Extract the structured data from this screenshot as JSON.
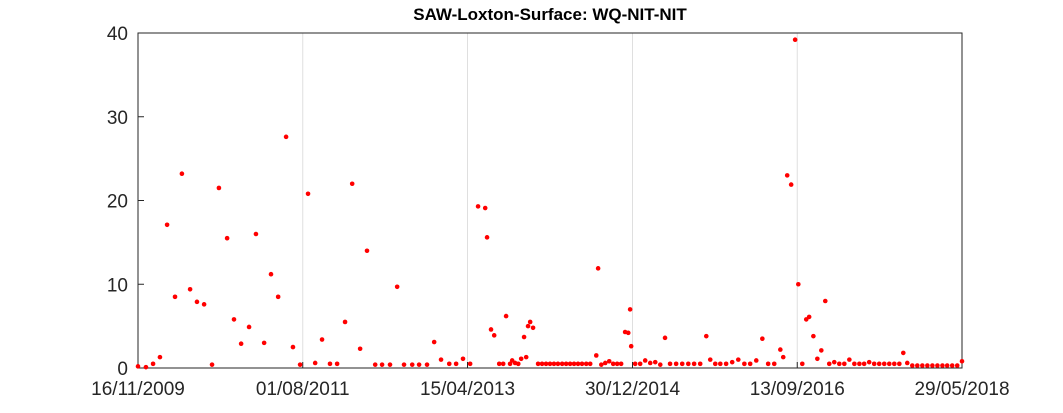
{
  "chart_data": {
    "type": "scatter",
    "title": "SAW-Loxton-Surface: WQ-NIT-NIT",
    "color": "#ff0000",
    "grid": "x",
    "xlim": [
      "2009-11-16",
      "2018-05-29"
    ],
    "xticks": [
      {
        "value": "2009-11-16",
        "label": "16/11/2009"
      },
      {
        "value": "2011-08-01",
        "label": "01/08/2011"
      },
      {
        "value": "2013-04-15",
        "label": "15/04/2013"
      },
      {
        "value": "2014-12-30",
        "label": "30/12/2014"
      },
      {
        "value": "2016-09-13",
        "label": "13/09/2016"
      },
      {
        "value": "2018-05-29",
        "label": "29/05/2018"
      }
    ],
    "ylim": [
      0,
      40
    ],
    "yticks": [
      0,
      10,
      20,
      30,
      40
    ],
    "x": [
      "2009-11-16",
      "2009-12-16",
      "2010-01-12",
      "2010-02-07",
      "2010-03-06",
      "2010-04-05",
      "2010-05-01",
      "2010-06-01",
      "2010-06-27",
      "2010-07-24",
      "2010-08-23",
      "2010-09-18",
      "2010-10-19",
      "2010-11-14",
      "2010-12-11",
      "2011-01-10",
      "2011-02-05",
      "2011-03-08",
      "2011-04-03",
      "2011-04-30",
      "2011-05-30",
      "2011-06-25",
      "2011-07-22",
      "2011-08-21",
      "2011-09-17",
      "2011-10-13",
      "2011-11-12",
      "2011-12-09",
      "2012-01-08",
      "2012-02-04",
      "2012-03-05",
      "2012-03-31",
      "2012-05-01",
      "2012-05-27",
      "2012-06-26",
      "2012-07-23",
      "2012-08-18",
      "2012-09-18",
      "2012-10-14",
      "2012-11-13",
      "2012-12-10",
      "2013-01-05",
      "2013-02-05",
      "2013-03-03",
      "2013-03-29",
      "2013-04-25",
      "2013-05-25",
      "2013-06-21",
      "2013-06-28",
      "2013-07-13",
      "2013-07-25",
      "2013-08-13",
      "2013-08-28",
      "2013-09-08",
      "2013-09-23",
      "2013-10-01",
      "2013-10-12",
      "2013-10-24",
      "2013-11-04",
      "2013-11-15",
      "2013-11-23",
      "2013-11-30",
      "2013-12-08",
      "2013-12-19",
      "2014-01-07",
      "2014-01-22",
      "2014-02-06",
      "2014-02-21",
      "2014-03-08",
      "2014-03-23",
      "2014-04-08",
      "2014-04-23",
      "2014-05-08",
      "2014-05-23",
      "2014-06-07",
      "2014-06-22",
      "2014-07-08",
      "2014-07-23",
      "2014-08-15",
      "2014-08-22",
      "2014-09-03",
      "2014-09-18",
      "2014-10-03",
      "2014-10-18",
      "2014-11-02",
      "2014-11-17",
      "2014-12-02",
      "2014-12-14",
      "2014-12-21",
      "2014-12-25",
      "2015-01-09",
      "2015-01-28",
      "2015-02-16",
      "2015-03-07",
      "2015-03-26",
      "2015-04-14",
      "2015-05-02",
      "2015-05-21",
      "2015-06-13",
      "2015-07-06",
      "2015-07-29",
      "2015-08-20",
      "2015-09-12",
      "2015-10-05",
      "2015-10-20",
      "2015-11-08",
      "2015-11-27",
      "2015-12-19",
      "2016-01-11",
      "2016-02-03",
      "2016-02-26",
      "2016-03-19",
      "2016-04-11",
      "2016-05-04",
      "2016-05-26",
      "2016-06-18",
      "2016-07-11",
      "2016-07-22",
      "2016-08-06",
      "2016-08-21",
      "2016-09-05",
      "2016-09-17",
      "2016-10-02",
      "2016-10-17",
      "2016-10-28",
      "2016-11-13",
      "2016-11-28",
      "2016-12-13",
      "2016-12-28",
      "2017-01-12",
      "2017-01-31",
      "2017-02-19",
      "2017-03-10",
      "2017-03-29",
      "2017-04-17",
      "2017-05-06",
      "2017-05-24",
      "2017-06-12",
      "2017-07-01",
      "2017-07-20",
      "2017-08-08",
      "2017-08-27",
      "2017-09-15",
      "2017-10-04",
      "2017-10-19",
      "2017-11-03",
      "2017-11-22",
      "2017-12-11",
      "2017-12-30",
      "2018-01-18",
      "2018-02-06",
      "2018-02-25",
      "2018-03-16",
      "2018-04-03",
      "2018-04-22",
      "2018-05-11",
      "2018-05-29"
    ],
    "values": [
      0.2,
      0.1,
      0.5,
      1.3,
      17.1,
      8.5,
      23.2,
      9.4,
      7.9,
      7.6,
      0.4,
      21.5,
      15.5,
      5.8,
      2.9,
      4.9,
      16.0,
      3.0,
      11.2,
      8.5,
      27.6,
      2.5,
      0.4,
      20.8,
      0.6,
      3.4,
      0.5,
      0.5,
      5.5,
      22.0,
      2.3,
      14.0,
      0.4,
      0.4,
      0.4,
      9.7,
      0.4,
      0.4,
      0.4,
      0.4,
      3.1,
      1.0,
      0.5,
      0.5,
      1.1,
      0.5,
      19.3,
      19.1,
      15.6,
      4.6,
      3.9,
      0.5,
      0.5,
      6.2,
      0.5,
      0.9,
      0.6,
      0.5,
      1.1,
      3.7,
      1.3,
      5.0,
      5.5,
      4.8,
      0.5,
      0.5,
      0.5,
      0.5,
      0.5,
      0.5,
      0.5,
      0.5,
      0.5,
      0.5,
      0.5,
      0.5,
      0.5,
      0.5,
      1.5,
      11.9,
      0.4,
      0.6,
      0.8,
      0.5,
      0.5,
      0.5,
      4.3,
      4.2,
      7.0,
      2.6,
      0.5,
      0.5,
      0.9,
      0.6,
      0.7,
      0.4,
      3.6,
      0.5,
      0.5,
      0.5,
      0.5,
      0.5,
      0.5,
      3.8,
      1.0,
      0.5,
      0.5,
      0.5,
      0.7,
      1.0,
      0.5,
      0.5,
      0.9,
      3.5,
      0.5,
      0.5,
      2.2,
      1.3,
      23.0,
      21.9,
      39.2,
      10.0,
      0.5,
      5.8,
      6.1,
      3.8,
      1.1,
      2.1,
      8.0,
      0.5,
      0.7,
      0.5,
      0.5,
      1.0,
      0.5,
      0.5,
      0.5,
      0.7,
      0.5,
      0.5,
      0.5,
      0.5,
      0.5,
      0.5,
      1.8,
      0.6,
      0.3,
      0.3,
      0.3,
      0.3,
      0.3,
      0.3,
      0.3,
      0.3,
      0.3,
      0.3,
      0.8
    ]
  }
}
